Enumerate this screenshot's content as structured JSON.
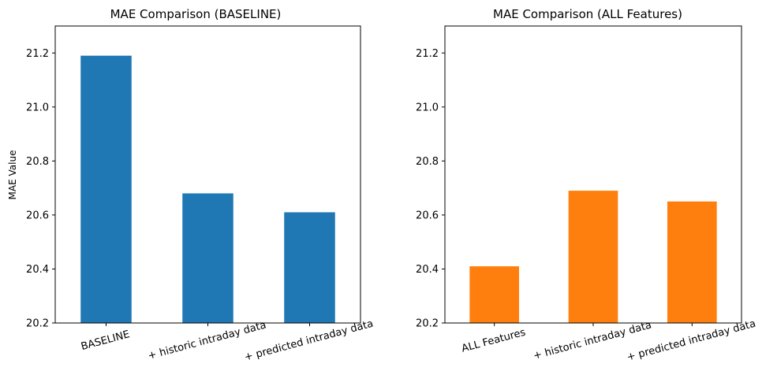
{
  "chart_data": [
    {
      "type": "bar",
      "title": "MAE Comparison (BASELINE)",
      "xlabel": "",
      "ylabel": "MAE Value",
      "categories": [
        "BASELINE",
        "+ historic intraday data",
        "+ predicted intraday data"
      ],
      "values": [
        21.19,
        20.68,
        20.61
      ],
      "ylim": [
        20.2,
        21.3
      ],
      "yticks": [
        20.2,
        20.4,
        20.6,
        20.8,
        21.0,
        21.2
      ],
      "ytick_labels": [
        "20.2",
        "20.4",
        "20.6",
        "20.8",
        "21.0",
        "21.2"
      ],
      "color": "#1f77b4",
      "grid": false
    },
    {
      "type": "bar",
      "title": "MAE Comparison (ALL Features)",
      "xlabel": "",
      "ylabel": "",
      "categories": [
        "ALL Features",
        "+ historic intraday data",
        "+ predicted intraday data"
      ],
      "values": [
        20.41,
        20.69,
        20.65
      ],
      "ylim": [
        20.2,
        21.3
      ],
      "yticks": [
        20.2,
        20.4,
        20.6,
        20.8,
        21.0,
        21.2
      ],
      "ytick_labels": [
        "20.2",
        "20.4",
        "20.6",
        "20.8",
        "21.0",
        "21.2"
      ],
      "color": "#ff7f0e",
      "grid": false
    }
  ]
}
